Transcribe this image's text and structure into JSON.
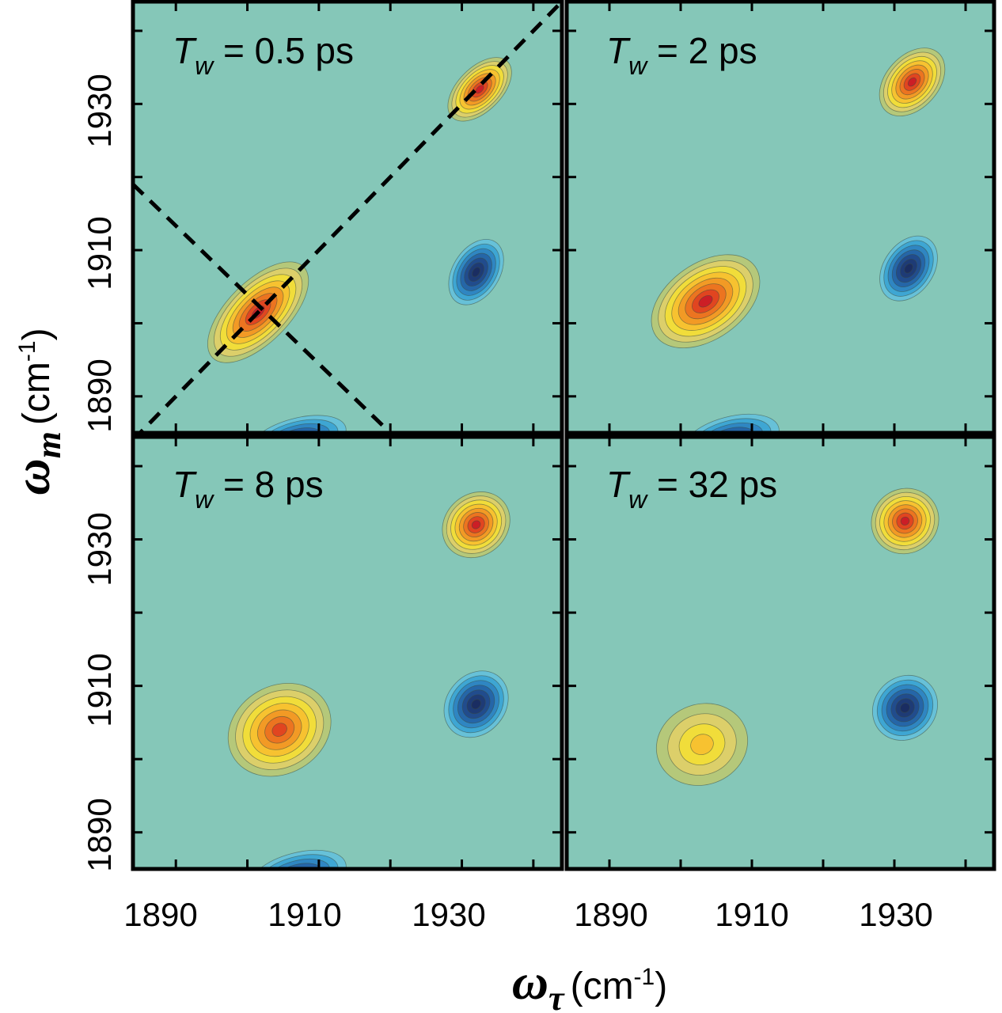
{
  "chart_data": {
    "type": "heatmap",
    "description_kind": "2D IR contour plots",
    "xlabel": {
      "symbol": "ω",
      "subscript": "τ",
      "unit": "(cm",
      "exp": "-1",
      "close": ")"
    },
    "ylabel": {
      "symbol": "ω",
      "subscript": "m",
      "unit": "(cm",
      "exp": "-1",
      "close": ")"
    },
    "xlim": [
      1884,
      1944
    ],
    "ylim": [
      1885,
      1944
    ],
    "x_ticks": [
      1890,
      1900,
      1910,
      1920,
      1930,
      1940
    ],
    "y_ticks": [
      1890,
      1900,
      1910,
      1920,
      1930,
      1940
    ],
    "x_tick_labels": [
      "1890",
      "1910",
      "1930"
    ],
    "y_tick_labels": [
      "1890",
      "1910",
      "1930"
    ],
    "colors": {
      "background": "#85c7b8",
      "pos": [
        "#b5c87a",
        "#dccf6a",
        "#f1dd3a",
        "#f7c230",
        "#f29a25",
        "#ec7420",
        "#e14520",
        "#cc1e26"
      ],
      "neg": [
        "#67c1d8",
        "#3ea6d3",
        "#2f86c2",
        "#2566a8",
        "#214c8d",
        "#1e3b76",
        "#1a2d62"
      ]
    },
    "panels": [
      {
        "label_T": "T",
        "label_sub": "w",
        "label_rest": " = 0.5 ps",
        "diagonal_line": true,
        "antidiagonal_line": {
          "from": [
            1884,
            1919
          ],
          "to": [
            1920,
            1885
          ]
        },
        "peaks": [
          {
            "x": 1901.5,
            "y": 1901.5,
            "amp": 1.0,
            "sx": 9,
            "sy": 4.2,
            "angle": 45
          },
          {
            "x": 1932.5,
            "y": 1932.0,
            "amp": 1.0,
            "sx": 5.5,
            "sy": 3.0,
            "angle": 45
          },
          {
            "x": 1932.0,
            "y": 1907.0,
            "amp": -1.0,
            "sx": 5.0,
            "sy": 3.2,
            "angle": 58
          },
          {
            "x": 1907.0,
            "y": 1884.0,
            "amp": -0.9,
            "sx": 7.0,
            "sy": 3.0,
            "angle": 15
          }
        ]
      },
      {
        "label_T": "T",
        "label_sub": "w",
        "label_rest": " = 2 ps",
        "diagonal_line": false,
        "peaks": [
          {
            "x": 1903.5,
            "y": 1903.0,
            "amp": 0.95,
            "sx": 8.5,
            "sy": 5.2,
            "angle": 35
          },
          {
            "x": 1932.5,
            "y": 1933.0,
            "amp": 0.95,
            "sx": 5.5,
            "sy": 3.6,
            "angle": 48
          },
          {
            "x": 1932.0,
            "y": 1907.5,
            "amp": -1.0,
            "sx": 5.0,
            "sy": 3.4,
            "angle": 55
          },
          {
            "x": 1907.0,
            "y": 1884.0,
            "amp": -0.9,
            "sx": 7.0,
            "sy": 3.2,
            "angle": 15
          }
        ]
      },
      {
        "label_T": "T",
        "label_sub": "w",
        "label_rest": " = 8 ps",
        "diagonal_line": false,
        "peaks": [
          {
            "x": 1904.5,
            "y": 1904.0,
            "amp": 0.85,
            "sx": 7.5,
            "sy": 6.0,
            "angle": 30
          },
          {
            "x": 1932.0,
            "y": 1932.0,
            "amp": 1.0,
            "sx": 5.0,
            "sy": 4.2,
            "angle": 40
          },
          {
            "x": 1932.0,
            "y": 1907.5,
            "amp": -1.0,
            "sx": 5.0,
            "sy": 4.0,
            "angle": 50
          },
          {
            "x": 1907.0,
            "y": 1884.0,
            "amp": -0.9,
            "sx": 7.0,
            "sy": 3.2,
            "angle": 15
          }
        ]
      },
      {
        "label_T": "T",
        "label_sub": "w",
        "label_rest": " = 32 ps",
        "diagonal_line": false,
        "peaks": [
          {
            "x": 1903.0,
            "y": 1902.0,
            "amp": 0.45,
            "sx": 6.5,
            "sy": 5.5,
            "angle": 20
          },
          {
            "x": 1931.5,
            "y": 1932.5,
            "amp": 1.0,
            "sx": 4.8,
            "sy": 4.4,
            "angle": 30
          },
          {
            "x": 1931.5,
            "y": 1907.0,
            "amp": -1.0,
            "sx": 4.8,
            "sy": 4.2,
            "angle": 45
          }
        ]
      }
    ]
  }
}
